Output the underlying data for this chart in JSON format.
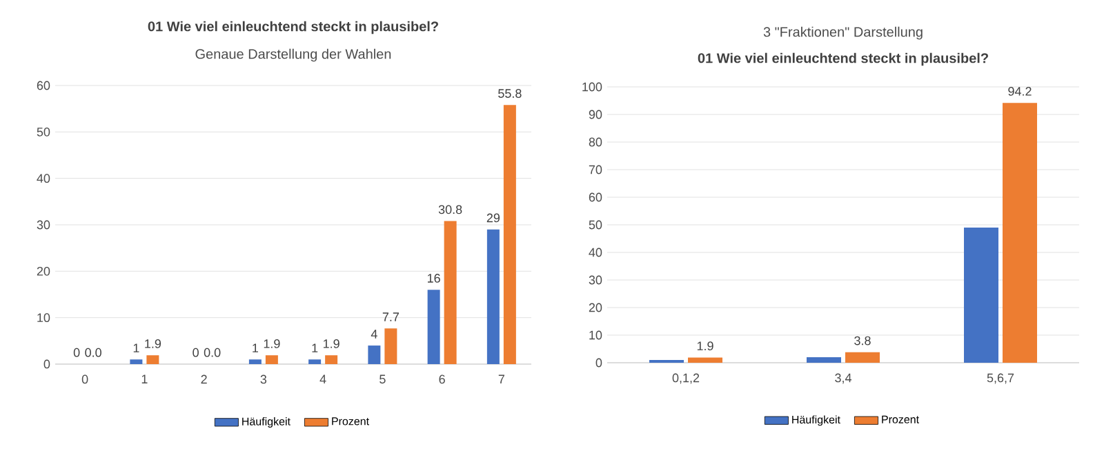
{
  "chart_data": [
    {
      "type": "bar",
      "title": "01 Wie viel einleuchtend steckt in plausibel?",
      "subtitle": "Genaue Darstellung der Wahlen",
      "categories": [
        "0",
        "1",
        "2",
        "3",
        "4",
        "5",
        "6",
        "7"
      ],
      "series": [
        {
          "name": "Häufigkeit",
          "color": "#4472c4",
          "values": [
            0,
            1,
            0,
            1,
            1,
            4,
            16,
            29
          ],
          "value_labels": [
            "0",
            "1",
            "0",
            "1",
            "1",
            "4",
            "16",
            "29"
          ]
        },
        {
          "name": "Prozent",
          "color": "#ed7d31",
          "values": [
            0.0,
            1.9,
            0.0,
            1.9,
            1.9,
            7.7,
            30.8,
            55.8
          ],
          "value_labels": [
            "0.0",
            "1.9",
            "0.0",
            "1.9",
            "1.9",
            "7.7",
            "30.8",
            "55.8"
          ]
        }
      ],
      "ylim": [
        0,
        60
      ],
      "yticks": [
        0,
        10,
        20,
        30,
        40,
        50,
        60
      ],
      "grid": "y",
      "legend": "bottom"
    },
    {
      "type": "bar",
      "title": "01 Wie viel einleuchtend steckt in plausibel?",
      "subtitle": "3 \"Fraktionen\" Darstellung",
      "categories": [
        "0,1,2",
        "3,4",
        "5,6,7"
      ],
      "series": [
        {
          "name": "Häufigkeit",
          "color": "#4472c4",
          "values": [
            1,
            2,
            49
          ]
        },
        {
          "name": "Prozent",
          "color": "#ed7d31",
          "values": [
            1.9,
            3.8,
            94.2
          ],
          "value_labels": [
            "1.9",
            "3.8",
            "94.2"
          ]
        }
      ],
      "ylim": [
        0,
        100
      ],
      "yticks": [
        0,
        10,
        20,
        30,
        40,
        50,
        60,
        70,
        80,
        90,
        100
      ],
      "grid": "y",
      "legend": "bottom"
    }
  ]
}
